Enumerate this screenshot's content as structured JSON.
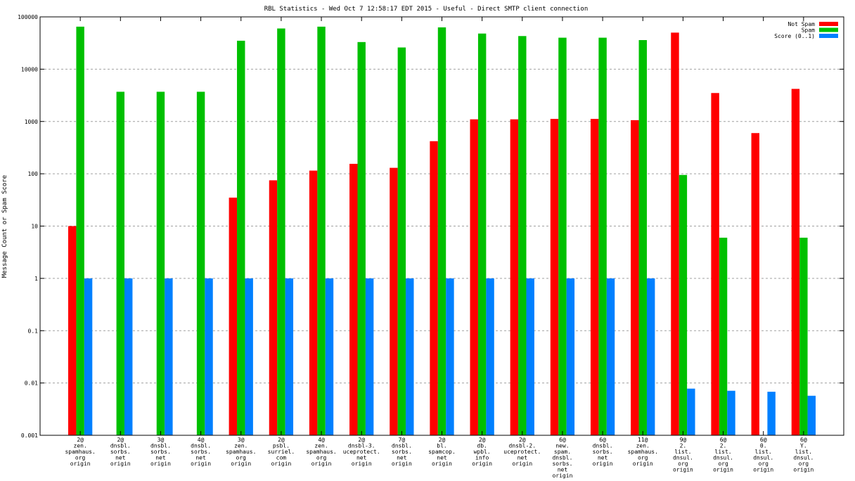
{
  "chart_data": {
    "type": "bar",
    "title": "RBL Statistics - Wed Oct  7 12:58:17 EDT 2015 - Useful - Direct SMTP client connection",
    "ylabel": "Message Count or Spam Score",
    "xlabel": "",
    "yscale": "log",
    "ylim": [
      0.001,
      100000
    ],
    "yticks": [
      "0.001",
      "0.01",
      "0.1",
      "1",
      "10",
      "100",
      "1000",
      "10000",
      "100000"
    ],
    "grid": true,
    "legend_position": "top-right",
    "categories": [
      [
        "2@",
        "zen.",
        "spamhaus.",
        "org",
        "origin"
      ],
      [
        "2@",
        "dnsbl.",
        "sorbs.",
        "net",
        "origin"
      ],
      [
        "3@",
        "dnsbl.",
        "sorbs.",
        "net",
        "origin"
      ],
      [
        "4@",
        "dnsbl.",
        "sorbs.",
        "net",
        "origin"
      ],
      [
        "3@",
        "zen.",
        "spamhaus.",
        "org",
        "origin"
      ],
      [
        "2@",
        "psbl.",
        "surriel.",
        "com",
        "origin"
      ],
      [
        "4@",
        "zen.",
        "spamhaus.",
        "org",
        "origin"
      ],
      [
        "2@",
        "dnsbl-3.",
        "uceprotect.",
        "net",
        "origin"
      ],
      [
        "7@",
        "dnsbl.",
        "sorbs.",
        "net",
        "origin"
      ],
      [
        "2@",
        "bl.",
        "spamcop.",
        "net",
        "origin"
      ],
      [
        "2@",
        "db.",
        "wpbl.",
        "info",
        "origin"
      ],
      [
        "2@",
        "dnsbl-2.",
        "uceprotect.",
        "net",
        "origin"
      ],
      [
        "6@",
        "new.",
        "spam.",
        "dnsbl.",
        "sorbs.",
        "net",
        "origin"
      ],
      [
        "6@",
        "dnsbl.",
        "sorbs.",
        "net",
        "origin"
      ],
      [
        "11@",
        "zen.",
        "spamhaus.",
        "org",
        "origin"
      ],
      [
        "9@",
        "2.",
        "list.",
        "dnsul.",
        "org",
        "origin"
      ],
      [
        "6@",
        "2.",
        "list.",
        "dnsul.",
        "org",
        "origin"
      ],
      [
        "6@",
        "0.",
        "list.",
        "dnsul.",
        "org",
        "origin"
      ],
      [
        "6@",
        "Y.",
        "list.",
        "dnsul.",
        "org",
        "origin"
      ]
    ],
    "series": [
      {
        "name": "Not Spam",
        "color": "#ff0000",
        "values": [
          10,
          null,
          null,
          null,
          35,
          75,
          115,
          155,
          130,
          420,
          1100,
          1100,
          1120,
          1120,
          1060,
          50000,
          3500,
          600,
          4200
        ]
      },
      {
        "name": "Spam",
        "color": "#00c000",
        "values": [
          65000,
          3700,
          3700,
          3700,
          35000,
          60000,
          65000,
          33000,
          26000,
          63000,
          48000,
          43000,
          40000,
          40000,
          36000,
          95,
          6,
          null,
          6
        ]
      },
      {
        "name": "Score (0..1)",
        "color": "#0080ff",
        "values": [
          1,
          1,
          1,
          1,
          1,
          1,
          1,
          1,
          1,
          1,
          1,
          1,
          1,
          1,
          1,
          0.0078,
          0.0071,
          0.0068,
          0.0057
        ]
      }
    ]
  }
}
